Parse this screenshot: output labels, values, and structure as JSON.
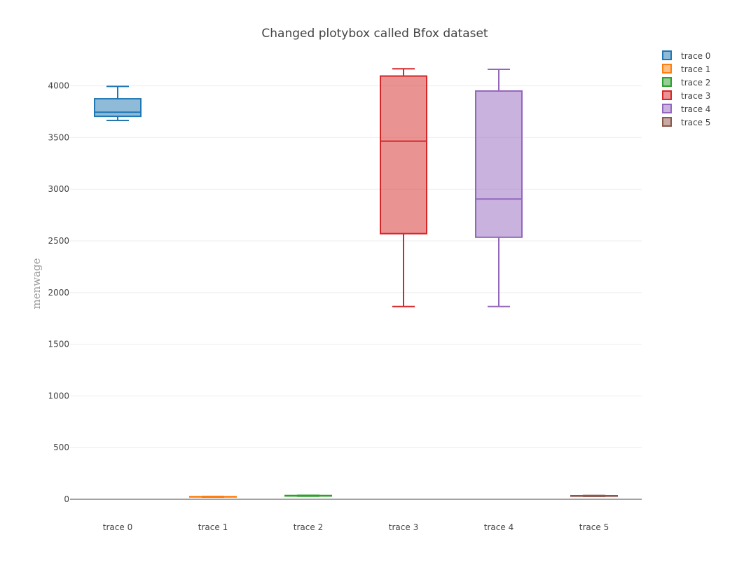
{
  "chart_data": {
    "type": "box",
    "title": "Changed plotybox called Bfox dataset",
    "xlabel": "",
    "ylabel": "menwage",
    "ylim": [
      -50,
      4250
    ],
    "yticks": [
      0,
      500,
      1000,
      1500,
      2000,
      2500,
      3000,
      3500,
      4000
    ],
    "categories": [
      "trace 0",
      "trace 1",
      "trace 2",
      "trace 3",
      "trace 4",
      "trace 5"
    ],
    "legend_position": "top-right",
    "grid": true,
    "series": [
      {
        "name": "trace 0",
        "color": "#1f77b4",
        "min": 3665,
        "q1": 3705,
        "median": 3745,
        "q3": 3875,
        "max": 3995
      },
      {
        "name": "trace 1",
        "color": "#ff7f0e",
        "min": 20,
        "q1": 22,
        "median": 24,
        "q3": 26,
        "max": 28
      },
      {
        "name": "trace 2",
        "color": "#2ca02c",
        "min": 30,
        "q1": 32,
        "median": 34,
        "q3": 36,
        "max": 38
      },
      {
        "name": "trace 3",
        "color": "#d62728",
        "min": 1865,
        "q1": 2570,
        "median": 3465,
        "q3": 4095,
        "max": 4165
      },
      {
        "name": "trace 4",
        "color": "#9467bd",
        "min": 1865,
        "q1": 2535,
        "median": 2905,
        "q3": 3950,
        "max": 4160
      },
      {
        "name": "trace 5",
        "color": "#8c564b",
        "min": 28,
        "q1": 30,
        "median": 32,
        "q3": 34,
        "max": 36
      }
    ]
  }
}
